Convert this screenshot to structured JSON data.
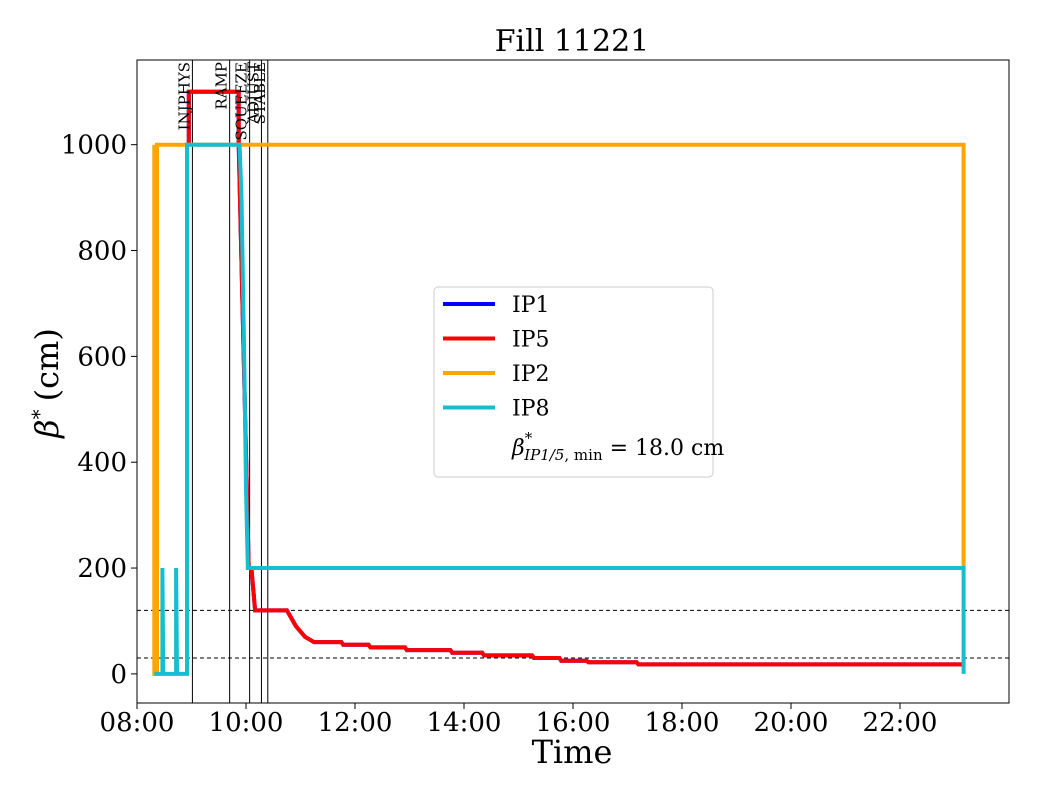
{
  "chart_data": {
    "type": "line",
    "title": "Fill 11221",
    "xlabel": "Time",
    "ylabel_symbol": "β",
    "ylabel_sup": "*",
    "ylabel_unit": "(cm)",
    "xlim": [
      "08:00",
      "24:00"
    ],
    "ylim": [
      -55,
      1160
    ],
    "x_ticks": [
      "08:00",
      "10:00",
      "12:00",
      "14:00",
      "16:00",
      "18:00",
      "20:00",
      "22:00"
    ],
    "y_ticks": [
      0,
      200,
      400,
      600,
      800,
      1000
    ],
    "grid": false,
    "legend_position": "center",
    "legend_note": {
      "beta": "β",
      "sup": "*",
      "sub_ip": "IP1/5",
      "sub_min": ", min",
      "rest": " = 18.0 cm"
    },
    "hlines": [
      120,
      30
    ],
    "vlines": [
      {
        "time": "09:01",
        "label": "INJPHYS"
      },
      {
        "time": "09:42",
        "label": "RAMP"
      },
      {
        "time": "10:04",
        "label": "SQUEEZE"
      },
      {
        "time": "10:17",
        "label": "ADJUST"
      },
      {
        "time": "10:24",
        "label": "STABLE"
      }
    ],
    "series": [
      {
        "name": "IP1",
        "color": "#0000ff",
        "points": [
          [
            "08:57",
            1000
          ],
          [
            "08:57",
            1100
          ],
          [
            "09:52",
            1100
          ],
          [
            "09:52",
            1000
          ],
          [
            "10:03",
            200
          ],
          [
            "10:06",
            200
          ],
          [
            "10:10",
            120
          ],
          [
            "10:45",
            120
          ],
          [
            "10:55",
            90
          ],
          [
            "11:05",
            70
          ],
          [
            "11:15",
            60
          ],
          [
            "11:45",
            60
          ],
          [
            "11:47",
            55
          ],
          [
            "12:15",
            55
          ],
          [
            "12:17",
            50
          ],
          [
            "12:55",
            50
          ],
          [
            "12:57",
            45
          ],
          [
            "13:45",
            45
          ],
          [
            "13:47",
            40
          ],
          [
            "14:20",
            40
          ],
          [
            "14:22",
            35
          ],
          [
            "15:15",
            35
          ],
          [
            "15:17",
            30
          ],
          [
            "15:45",
            30
          ],
          [
            "15:47",
            25
          ],
          [
            "16:15",
            25
          ],
          [
            "16:17",
            22
          ],
          [
            "17:10",
            22
          ],
          [
            "17:12",
            18
          ],
          [
            "23:10",
            18
          ]
        ]
      },
      {
        "name": "IP5",
        "color": "#ff0000",
        "points": [
          [
            "08:57",
            1000
          ],
          [
            "08:57",
            1100
          ],
          [
            "09:52",
            1100
          ],
          [
            "09:52",
            1000
          ],
          [
            "10:03",
            200
          ],
          [
            "10:06",
            200
          ],
          [
            "10:10",
            120
          ],
          [
            "10:45",
            120
          ],
          [
            "10:55",
            90
          ],
          [
            "11:05",
            70
          ],
          [
            "11:15",
            60
          ],
          [
            "11:45",
            60
          ],
          [
            "11:47",
            55
          ],
          [
            "12:15",
            55
          ],
          [
            "12:17",
            50
          ],
          [
            "12:55",
            50
          ],
          [
            "12:57",
            45
          ],
          [
            "13:45",
            45
          ],
          [
            "13:47",
            40
          ],
          [
            "14:20",
            40
          ],
          [
            "14:22",
            35
          ],
          [
            "15:15",
            35
          ],
          [
            "15:17",
            30
          ],
          [
            "15:45",
            30
          ],
          [
            "15:47",
            25
          ],
          [
            "16:15",
            25
          ],
          [
            "16:17",
            22
          ],
          [
            "17:10",
            22
          ],
          [
            "17:12",
            18
          ],
          [
            "23:10",
            18
          ]
        ]
      },
      {
        "name": "IP2",
        "color": "#ffa500",
        "points": [
          [
            "08:19",
            1000
          ],
          [
            "08:19",
            0
          ],
          [
            "08:22",
            0
          ],
          [
            "08:22",
            1000
          ],
          [
            "23:10",
            1000
          ],
          [
            "23:10",
            200
          ]
        ]
      },
      {
        "name": "IP8",
        "color": "#17becf",
        "points": [
          [
            "08:19",
            0
          ],
          [
            "08:28",
            0
          ],
          [
            "08:28",
            200
          ],
          [
            "08:29",
            0
          ],
          [
            "08:43",
            0
          ],
          [
            "08:43",
            200
          ],
          [
            "08:44",
            0
          ],
          [
            "08:55",
            0
          ],
          [
            "08:55",
            1000
          ],
          [
            "09:53",
            1000
          ],
          [
            "09:55",
            900
          ],
          [
            "09:58",
            600
          ],
          [
            "10:00",
            350
          ],
          [
            "10:02",
            200
          ],
          [
            "23:10",
            200
          ],
          [
            "23:10",
            0
          ]
        ]
      }
    ]
  }
}
